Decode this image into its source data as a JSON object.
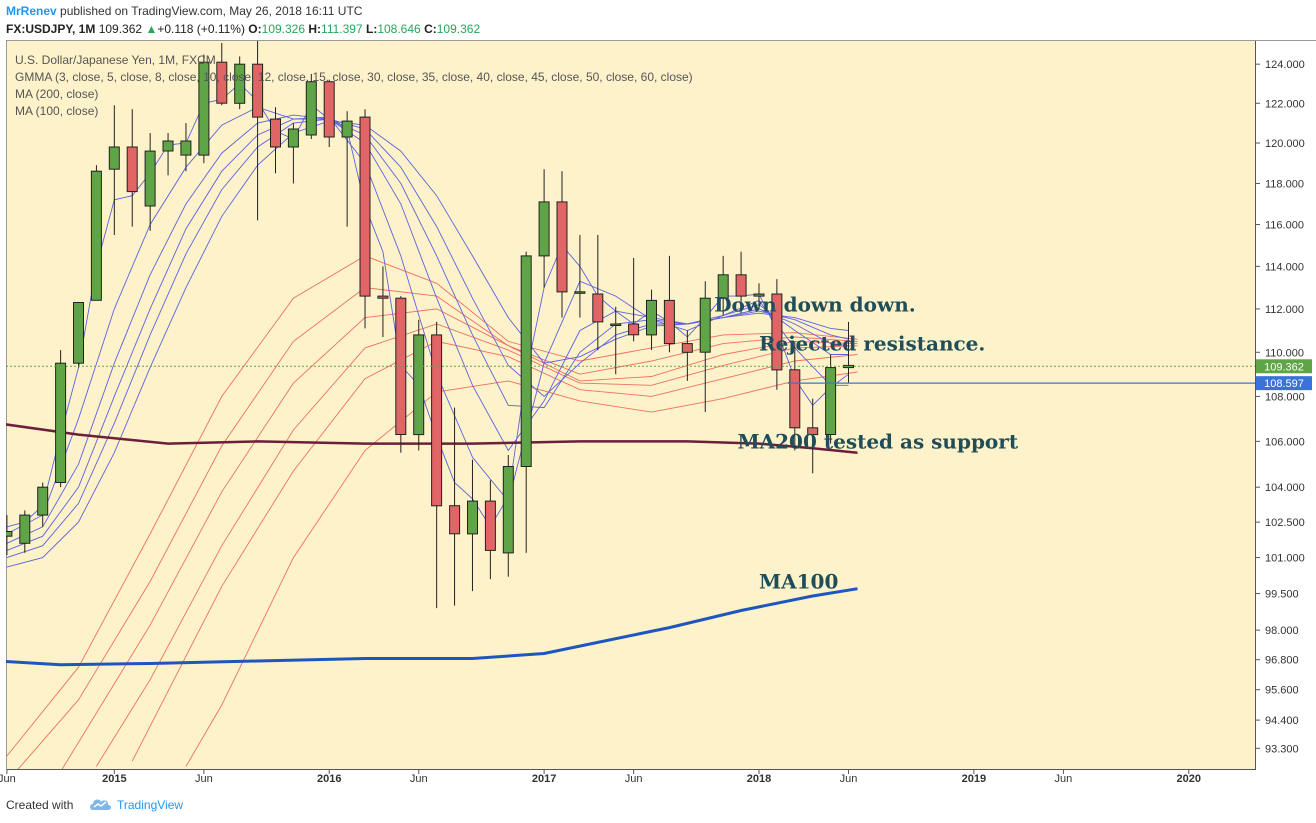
{
  "header": {
    "author": "MrRenev",
    "published": "published on TradingView.com, May 26, 2018 16:11 UTC",
    "symbol_line": {
      "symbol": "FX:USDJPY, 1M",
      "last": "109.362",
      "change": "+0.118 (+0.11%)",
      "o_label": "O:",
      "o": "109.326",
      "h_label": "H:",
      "h": "111.397",
      "l_label": "L:",
      "l": "108.646",
      "c_label": "C:",
      "c": "109.362"
    }
  },
  "legend": [
    "U.S. Dollar/Japanese Yen, 1M, FXCM",
    "GMMA (3, close, 5, close, 8, close, 10, close, 12, close, 15, close, 30, close, 35, close, 40, close, 45, close, 50, close, 60, close)",
    "MA (200, close)",
    "MA (100, close)"
  ],
  "annotations": [
    {
      "text": "Down down down.",
      "price": 112.2,
      "month": 39.5
    },
    {
      "text": "Rejected resistance.",
      "price": 110.4,
      "month": 42.0
    },
    {
      "text": "MA200 tested as support",
      "price": 106.0,
      "month": 40.8
    },
    {
      "text": "MA100",
      "price": 100.0,
      "month": 42.0
    }
  ],
  "footer": {
    "created": "Created with",
    "brand": "TradingView"
  },
  "colors": {
    "background": "#fdf2c9",
    "up": "#5fa547",
    "down": "#e06666",
    "gmma_short": "#5b63e0",
    "gmma_long": "#f07060",
    "ma200": "#6b1f3a",
    "ma100": "#1e56c0",
    "last_price": "#5fa547",
    "level_line": "#3a73d8"
  },
  "chart_data": {
    "type": "candlestick",
    "title": "U.S. Dollar/Japanese Yen, 1M, FXCM",
    "y_axis": {
      "ticks": [
        "93.300",
        "94.400",
        "95.600",
        "96.800",
        "98.000",
        "99.500",
        "101.000",
        "102.500",
        "104.000",
        "106.000",
        "108.000",
        "110.000",
        "112.000",
        "114.000",
        "116.000",
        "118.000",
        "120.000",
        "122.000",
        "124.000"
      ],
      "scale": "log",
      "range": [
        92.5,
        125.2
      ]
    },
    "x_axis": {
      "ticks": [
        {
          "label": "Jun",
          "month": 0,
          "bold": false
        },
        {
          "label": "2015",
          "month": 6,
          "bold": true
        },
        {
          "label": "Jun",
          "month": 11,
          "bold": false
        },
        {
          "label": "2016",
          "month": 18,
          "bold": true
        },
        {
          "label": "Jun",
          "month": 23,
          "bold": false
        },
        {
          "label": "2017",
          "month": 30,
          "bold": true
        },
        {
          "label": "Jun",
          "month": 35,
          "bold": false
        },
        {
          "label": "2018",
          "month": 42,
          "bold": true
        },
        {
          "label": "Jun",
          "month": 47,
          "bold": false
        },
        {
          "label": "2019",
          "month": 54,
          "bold": true
        },
        {
          "label": "Jun",
          "month": 59,
          "bold": false
        },
        {
          "label": "2020",
          "month": 66,
          "bold": true
        }
      ],
      "range": [
        -0.05,
        69.7
      ]
    },
    "candles": [
      {
        "t": 0,
        "o": 101.9,
        "h": 102.8,
        "l": 101.1,
        "c": 102.1
      },
      {
        "t": 1,
        "o": 101.6,
        "h": 103.0,
        "l": 101.2,
        "c": 102.8
      },
      {
        "t": 2,
        "o": 102.8,
        "h": 104.2,
        "l": 102.3,
        "c": 104.0
      },
      {
        "t": 3,
        "o": 104.2,
        "h": 110.1,
        "l": 104.0,
        "c": 109.5
      },
      {
        "t": 4,
        "o": 109.5,
        "h": 112.3,
        "l": 109.3,
        "c": 112.3
      },
      {
        "t": 5,
        "o": 112.4,
        "h": 118.9,
        "l": 112.4,
        "c": 118.6
      },
      {
        "t": 6,
        "o": 118.7,
        "h": 121.9,
        "l": 115.5,
        "c": 119.8
      },
      {
        "t": 7,
        "o": 119.8,
        "h": 121.7,
        "l": 115.9,
        "c": 117.6
      },
      {
        "t": 8,
        "o": 116.9,
        "h": 120.5,
        "l": 115.7,
        "c": 119.6
      },
      {
        "t": 9,
        "o": 119.6,
        "h": 120.5,
        "l": 118.4,
        "c": 120.1
      },
      {
        "t": 10,
        "o": 119.4,
        "h": 121.0,
        "l": 118.6,
        "c": 120.1
      },
      {
        "t": 11,
        "o": 119.4,
        "h": 124.5,
        "l": 119.0,
        "c": 124.1
      },
      {
        "t": 12,
        "o": 124.1,
        "h": 125.1,
        "l": 121.9,
        "c": 122.0
      },
      {
        "t": 13,
        "o": 122.0,
        "h": 124.4,
        "l": 121.7,
        "c": 124.0
      },
      {
        "t": 14,
        "o": 124.0,
        "h": 125.2,
        "l": 116.2,
        "c": 121.3
      },
      {
        "t": 15,
        "o": 121.2,
        "h": 121.8,
        "l": 118.5,
        "c": 119.8
      },
      {
        "t": 16,
        "o": 119.8,
        "h": 121.0,
        "l": 118.0,
        "c": 120.7
      },
      {
        "t": 17,
        "o": 120.4,
        "h": 123.5,
        "l": 120.2,
        "c": 123.1
      },
      {
        "t": 18,
        "o": 123.1,
        "h": 123.2,
        "l": 119.8,
        "c": 120.3
      },
      {
        "t": 19,
        "o": 120.3,
        "h": 121.6,
        "l": 115.9,
        "c": 121.1
      },
      {
        "t": 20,
        "o": 121.3,
        "h": 121.7,
        "l": 111.1,
        "c": 112.6
      },
      {
        "t": 21,
        "o": 112.6,
        "h": 114.0,
        "l": 110.7,
        "c": 112.5
      },
      {
        "t": 22,
        "o": 112.5,
        "h": 112.6,
        "l": 105.5,
        "c": 106.3
      },
      {
        "t": 23,
        "o": 106.3,
        "h": 111.5,
        "l": 105.6,
        "c": 110.8
      },
      {
        "t": 24,
        "o": 110.8,
        "h": 111.4,
        "l": 98.9,
        "c": 103.2
      },
      {
        "t": 25,
        "o": 103.2,
        "h": 107.5,
        "l": 99.0,
        "c": 102.0
      },
      {
        "t": 26,
        "o": 102.0,
        "h": 105.2,
        "l": 99.6,
        "c": 103.4
      },
      {
        "t": 27,
        "o": 103.4,
        "h": 104.3,
        "l": 100.1,
        "c": 101.3
      },
      {
        "t": 28,
        "o": 101.2,
        "h": 105.4,
        "l": 100.2,
        "c": 104.9
      },
      {
        "t": 29,
        "o": 104.9,
        "h": 114.7,
        "l": 101.2,
        "c": 114.5
      },
      {
        "t": 30,
        "o": 114.5,
        "h": 118.7,
        "l": 113.0,
        "c": 117.1
      },
      {
        "t": 31,
        "o": 117.1,
        "h": 118.6,
        "l": 111.6,
        "c": 112.8
      },
      {
        "t": 32,
        "o": 112.8,
        "h": 115.5,
        "l": 111.6,
        "c": 112.8
      },
      {
        "t": 33,
        "o": 112.7,
        "h": 115.5,
        "l": 110.1,
        "c": 111.4
      },
      {
        "t": 34,
        "o": 111.3,
        "h": 112.1,
        "l": 109.0,
        "c": 111.3
      },
      {
        "t": 35,
        "o": 111.3,
        "h": 114.4,
        "l": 110.5,
        "c": 110.8
      },
      {
        "t": 36,
        "o": 110.8,
        "h": 112.9,
        "l": 110.1,
        "c": 112.4
      },
      {
        "t": 37,
        "o": 112.4,
        "h": 114.5,
        "l": 110.0,
        "c": 110.4
      },
      {
        "t": 38,
        "o": 110.4,
        "h": 111.0,
        "l": 108.7,
        "c": 110.0
      },
      {
        "t": 39,
        "o": 110.0,
        "h": 113.3,
        "l": 107.3,
        "c": 112.5
      },
      {
        "t": 40,
        "o": 112.5,
        "h": 114.5,
        "l": 111.7,
        "c": 113.6
      },
      {
        "t": 41,
        "o": 113.6,
        "h": 114.7,
        "l": 111.8,
        "c": 112.6
      },
      {
        "t": 42,
        "o": 112.6,
        "h": 113.2,
        "l": 112.0,
        "c": 112.7
      },
      {
        "t": 43,
        "o": 112.7,
        "h": 113.4,
        "l": 108.3,
        "c": 109.2
      },
      {
        "t": 44,
        "o": 109.2,
        "h": 110.5,
        "l": 105.6,
        "c": 106.6
      },
      {
        "t": 45,
        "o": 106.6,
        "h": 107.9,
        "l": 104.6,
        "c": 106.3
      },
      {
        "t": 46,
        "o": 106.3,
        "h": 109.9,
        "l": 105.9,
        "c": 109.3
      },
      {
        "t": 47,
        "o": 109.3,
        "h": 111.4,
        "l": 108.6,
        "c": 109.4
      }
    ],
    "ma200": {
      "t": [
        -0.5,
        4,
        9,
        14,
        20,
        26,
        32,
        38,
        42,
        45,
        47.5
      ],
      "v": [
        106.8,
        106.3,
        105.9,
        106.0,
        105.9,
        105.9,
        106.0,
        106.0,
        105.9,
        105.7,
        105.5
      ]
    },
    "ma100": {
      "t": [
        -0.5,
        3,
        8,
        14,
        20,
        26,
        30,
        33,
        37,
        41,
        45,
        47.5
      ],
      "v": [
        96.75,
        96.6,
        96.65,
        96.75,
        96.85,
        96.85,
        97.05,
        97.5,
        98.1,
        98.8,
        99.4,
        99.7
      ]
    },
    "gmma_short": [
      {
        "period": 3,
        "t": [
          0,
          1,
          2,
          3,
          4,
          5,
          6,
          7,
          8,
          9,
          10,
          11,
          12,
          13,
          14,
          15,
          16,
          17,
          18,
          19,
          20,
          21,
          22,
          23,
          24,
          25,
          26,
          27,
          28,
          29,
          30,
          31,
          32,
          33,
          34,
          35,
          36,
          37,
          38,
          39,
          40,
          41,
          42,
          43,
          44,
          45,
          46,
          47
        ],
        "v": [
          102.3,
          102.5,
          103.2,
          106.3,
          109.3,
          114.0,
          117.2,
          117.4,
          118.5,
          119.9,
          120.0,
          122.0,
          122.2,
          123.0,
          122.1,
          120.6,
          120.2,
          121.9,
          121.2,
          120.7,
          116.9,
          114.7,
          109.4,
          108.5,
          106.2,
          104.2,
          103.5,
          102.3,
          103.6,
          109.0,
          113.0,
          115.0,
          114.0,
          112.6,
          111.9,
          111.3,
          111.9,
          111.4,
          110.7,
          111.6,
          112.6,
          112.6,
          112.7,
          111.0,
          108.8,
          107.6,
          108.4,
          109.0
        ]
      },
      {
        "period": 5,
        "t": [
          0,
          2,
          4,
          6,
          8,
          10,
          12,
          14,
          16,
          18,
          20,
          22,
          24,
          26,
          28,
          30,
          32,
          34,
          36,
          38,
          40,
          42,
          44,
          46,
          47
        ],
        "v": [
          102.0,
          102.8,
          107.0,
          112.0,
          116.0,
          118.8,
          120.9,
          121.8,
          121.2,
          121.3,
          119.0,
          114.5,
          109.0,
          105.3,
          103.4,
          109.5,
          113.3,
          112.6,
          111.5,
          111.0,
          111.7,
          112.4,
          110.2,
          108.5,
          108.5
        ]
      },
      {
        "period": 8,
        "t": [
          0,
          2,
          4,
          6,
          8,
          10,
          12,
          14,
          16,
          18,
          20,
          22,
          24,
          26,
          28,
          30,
          32,
          34,
          36,
          38,
          40,
          42,
          44,
          46,
          47
        ],
        "v": [
          101.6,
          102.3,
          105.0,
          109.5,
          113.6,
          117.0,
          119.5,
          121.0,
          121.4,
          121.2,
          120.0,
          117.0,
          112.5,
          108.5,
          105.6,
          107.8,
          111.0,
          111.9,
          111.6,
          111.3,
          111.7,
          112.2,
          111.0,
          109.9,
          109.9
        ]
      },
      {
        "period": 10,
        "t": [
          0,
          2,
          4,
          6,
          8,
          10,
          12,
          14,
          16,
          18,
          20,
          22,
          24,
          26,
          28,
          30,
          32,
          34,
          36,
          38,
          40,
          42,
          44,
          46,
          47
        ],
        "v": [
          101.3,
          101.9,
          104.0,
          108.0,
          112.0,
          115.8,
          118.6,
          120.4,
          121.2,
          121.2,
          120.4,
          118.0,
          114.5,
          110.8,
          107.6,
          107.5,
          110.0,
          111.3,
          111.5,
          111.3,
          111.6,
          112.0,
          111.3,
          110.4,
          110.3
        ]
      },
      {
        "period": 12,
        "t": [
          0,
          2,
          4,
          6,
          8,
          10,
          12,
          14,
          16,
          18,
          20,
          22,
          24,
          26,
          28,
          30,
          32,
          34,
          36,
          38,
          40,
          42,
          44,
          46,
          47
        ],
        "v": [
          101.0,
          101.5,
          103.3,
          106.8,
          110.8,
          114.6,
          117.7,
          119.8,
          121.0,
          121.2,
          120.7,
          118.8,
          115.9,
          112.5,
          109.4,
          108.0,
          109.5,
          110.8,
          111.3,
          111.3,
          111.6,
          111.9,
          111.5,
          110.8,
          110.6
        ]
      },
      {
        "period": 15,
        "t": [
          0,
          2,
          4,
          6,
          8,
          10,
          12,
          14,
          16,
          18,
          20,
          22,
          24,
          26,
          28,
          30,
          32,
          34,
          36,
          38,
          40,
          42,
          44,
          46,
          47
        ],
        "v": [
          100.6,
          101.0,
          102.5,
          105.5,
          109.3,
          113.0,
          116.4,
          118.9,
          120.5,
          121.1,
          120.9,
          119.6,
          117.4,
          114.5,
          111.6,
          109.5,
          109.8,
          110.6,
          111.2,
          111.3,
          111.6,
          111.8,
          111.6,
          111.1,
          111.0
        ]
      }
    ],
    "gmma_long": [
      {
        "period": 30,
        "t": [
          0,
          4,
          8,
          12,
          16,
          20,
          24,
          28,
          32,
          36,
          40,
          44,
          47.5
        ],
        "v": [
          93.0,
          96.5,
          102.0,
          108.0,
          112.5,
          114.5,
          113.2,
          110.5,
          109.6,
          110.2,
          110.8,
          110.9,
          110.6
        ]
      },
      {
        "period": 35,
        "t": [
          0,
          4,
          8,
          12,
          16,
          20,
          24,
          28,
          32,
          36,
          40,
          44,
          47.5
        ],
        "v": [
          92.0,
          95.2,
          100.0,
          105.8,
          110.5,
          113.0,
          112.6,
          110.3,
          109.0,
          109.6,
          110.4,
          110.7,
          110.5
        ]
      },
      {
        "period": 40,
        "t": [
          3,
          8,
          12,
          16,
          20,
          24,
          28,
          32,
          36,
          40,
          44,
          47.5
        ],
        "v": [
          92.4,
          98.2,
          103.8,
          108.6,
          111.6,
          112.0,
          110.3,
          108.7,
          108.9,
          109.9,
          110.5,
          110.4
        ]
      },
      {
        "period": 45,
        "t": [
          5,
          8,
          12,
          16,
          20,
          24,
          28,
          32,
          36,
          40,
          44,
          47.5
        ],
        "v": [
          92.6,
          96.0,
          101.5,
          106.5,
          110.2,
          111.3,
          110.1,
          108.6,
          108.5,
          109.4,
          110.2,
          110.3
        ]
      },
      {
        "period": 50,
        "t": [
          7,
          12,
          16,
          20,
          24,
          28,
          32,
          36,
          40,
          44,
          47.5
        ],
        "v": [
          92.8,
          99.8,
          104.7,
          108.8,
          110.5,
          109.8,
          108.3,
          108.0,
          108.8,
          109.6,
          109.9
        ]
      },
      {
        "period": 60,
        "t": [
          10,
          12,
          16,
          20,
          24,
          28,
          32,
          36,
          40,
          44,
          47.5
        ],
        "v": [
          92.6,
          95.0,
          101.0,
          105.6,
          108.2,
          108.7,
          107.8,
          107.3,
          107.9,
          108.7,
          109.1
        ]
      }
    ],
    "price_tags": [
      {
        "label": "109.362",
        "price": 109.362,
        "color": "#5fa547"
      },
      {
        "label": "108.597",
        "price": 108.597,
        "color": "#3a73d8"
      }
    ],
    "last_price_line": 109.362,
    "level_line": 108.597,
    "grid": false,
    "legend_position": "top-left"
  }
}
